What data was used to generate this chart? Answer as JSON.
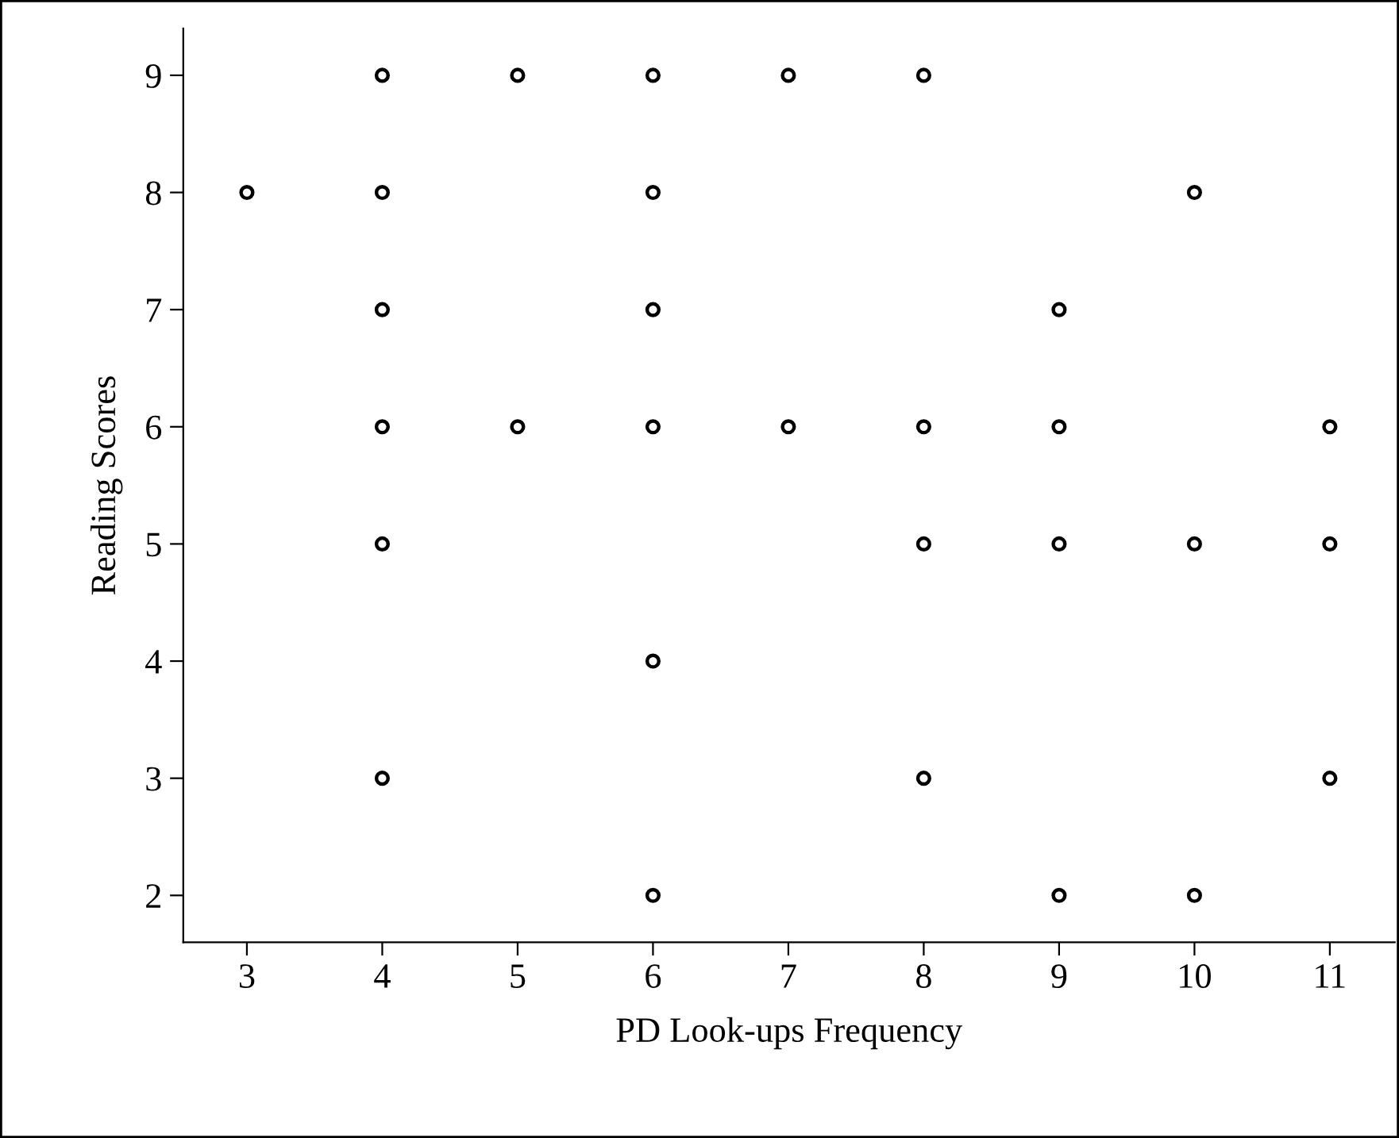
{
  "chart_data": {
    "type": "scatter",
    "xlabel": "PD Look-ups Frequency",
    "ylabel": "Reading Scores",
    "series": [
      {
        "color": "#000000",
        "x": [
          3,
          4,
          4,
          4,
          4,
          4,
          4,
          5,
          5,
          6,
          6,
          6,
          6,
          6,
          6,
          7,
          7,
          8,
          8,
          8,
          8,
          9,
          9,
          9,
          9,
          10,
          10,
          10,
          11,
          11,
          11
        ],
        "values": [
          8,
          9,
          8,
          7,
          6,
          5,
          3,
          9,
          6,
          9,
          8,
          7,
          6,
          4,
          2,
          9,
          6,
          9,
          6,
          5,
          3,
          7,
          6,
          5,
          2,
          8,
          5,
          2,
          6,
          5,
          3
        ]
      }
    ],
    "xlim": [
      2.53,
      11.48
    ],
    "ylim": [
      1.6,
      9.4
    ],
    "xticks": [
      3,
      4,
      5,
      6,
      7,
      8,
      9,
      10,
      11
    ],
    "yticks": [
      2,
      3,
      4,
      5,
      6,
      7,
      8,
      9
    ],
    "marker": "circle",
    "grid": false,
    "legend": false
  }
}
